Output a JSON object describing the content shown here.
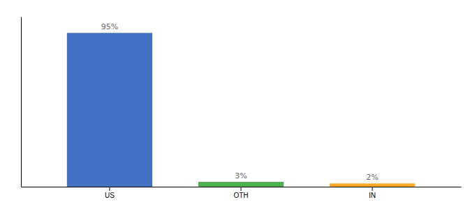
{
  "chart_data": {
    "type": "bar",
    "categories": [
      "US",
      "OTH",
      "IN"
    ],
    "values": [
      95,
      3,
      2
    ],
    "value_labels": [
      "95%",
      "3%",
      "2%"
    ],
    "colors": [
      "#4472c4",
      "#4caf50",
      "#ffa726"
    ],
    "ylim": [
      0,
      105
    ],
    "data_labels": true,
    "tick_labels": "x"
  }
}
